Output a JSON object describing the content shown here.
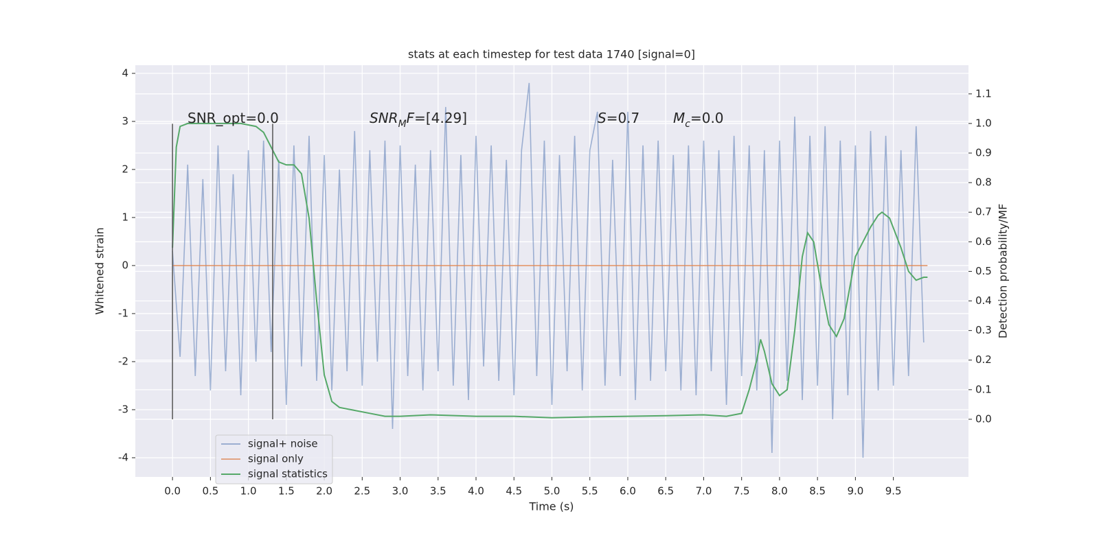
{
  "chart_data": {
    "type": "line",
    "title": "stats at each timestep for test data 1740 [signal=0]",
    "xlabel": "Time (s)",
    "ylabel": "Whitened strain",
    "y2label": "Detection probability/MF",
    "xlim": [
      -0.49,
      10.49
    ],
    "ylim": [
      -4.4,
      4.17
    ],
    "y2lim": [
      -0.195,
      1.197
    ],
    "xticks": [
      {
        "value": 0,
        "label": "0.0"
      },
      0.5,
      {
        "value": 1,
        "label": "1.0"
      },
      1.5,
      {
        "value": 2,
        "label": "2.0"
      },
      2.5,
      {
        "value": 3,
        "label": "3.0"
      },
      3.5,
      {
        "value": 4,
        "label": "4.0"
      },
      4.5,
      {
        "value": 5,
        "label": "5.0"
      },
      5.5,
      {
        "value": 6,
        "label": "6.0"
      },
      6.5,
      {
        "value": 7,
        "label": "7.0"
      },
      7.5,
      {
        "value": 8,
        "label": "8.0"
      },
      8.5,
      {
        "value": 9,
        "label": "9.0"
      },
      9.5
    ],
    "yticks": [
      -4,
      -3,
      -2,
      -1,
      0,
      1,
      2,
      3,
      4
    ],
    "y2ticks": [
      {
        "value": 0,
        "label": "0.0"
      },
      0.1,
      0.2,
      0.3,
      0.4,
      0.5,
      0.6,
      0.7,
      0.8,
      0.9,
      {
        "value": 1,
        "label": "1.0"
      },
      1.1
    ],
    "grid": true,
    "vlines": {
      "x": [
        0,
        1.32
      ],
      "ymin": -3.2,
      "ymax": 2.95,
      "color": "#555555"
    },
    "annotations": [
      [
        {
          "text": "SNR_opt=0.0"
        }
      ],
      [
        {
          "text": "SNR",
          "style": "italic"
        },
        {
          "text": "M",
          "style": "italic",
          "baseline": "sub"
        },
        {
          "text": "F",
          "style": "italic"
        },
        {
          "text": "=[4.29]"
        }
      ],
      [
        {
          "text": "S",
          "style": "italic"
        },
        {
          "text": "=0.7"
        }
      ],
      [
        {
          "text": "M",
          "style": "italic"
        },
        {
          "text": "c",
          "style": "italic",
          "baseline": "sub"
        },
        {
          "text": "=0.0"
        }
      ]
    ],
    "legend": "lower left",
    "series": [
      {
        "name": "signal+ noise",
        "color": "#4c72b0",
        "opacity": 0.5,
        "x": [
          0,
          0.1,
          0.2,
          0.3,
          0.4,
          0.5,
          0.6,
          0.7,
          0.8,
          0.9,
          1,
          1.1,
          1.2,
          1.3,
          1.4,
          1.5,
          1.6,
          1.7,
          1.8,
          1.9,
          2,
          2.1,
          2.2,
          2.3,
          2.4,
          2.5,
          2.6,
          2.7,
          2.8,
          2.9,
          3,
          3.1,
          3.2,
          3.3,
          3.4,
          3.5,
          3.6,
          3.7,
          3.8,
          3.9,
          4,
          4.1,
          4.2,
          4.3,
          4.4,
          4.5,
          4.6,
          4.7,
          4.8,
          4.9,
          5,
          5.1,
          5.2,
          5.3,
          5.4,
          5.5,
          5.6,
          5.7,
          5.8,
          5.9,
          6,
          6.1,
          6.2,
          6.3,
          6.4,
          6.5,
          6.6,
          6.7,
          6.8,
          6.9,
          7,
          7.1,
          7.2,
          7.3,
          7.4,
          7.5,
          7.6,
          7.7,
          7.8,
          7.9,
          8,
          8.1,
          8.2,
          8.3,
          8.4,
          8.5,
          8.6,
          8.7,
          8.8,
          8.9,
          9,
          9.1,
          9.2,
          9.3,
          9.4,
          9.5,
          9.6,
          9.7,
          9.8,
          9.9
        ],
        "values": [
          0.3,
          -1.9,
          2.1,
          -2.3,
          1.8,
          -2.6,
          2.5,
          -2.2,
          1.9,
          -2.7,
          2.4,
          -2.0,
          2.6,
          -1.8,
          2.2,
          -2.9,
          2.5,
          -2.1,
          2.7,
          -2.4,
          2.3,
          -2.6,
          2.0,
          -2.2,
          2.8,
          -2.5,
          2.4,
          -2.0,
          2.6,
          -3.4,
          2.5,
          -2.3,
          2.1,
          -2.6,
          2.4,
          -2.2,
          3.3,
          -2.5,
          2.3,
          -2.8,
          2.7,
          -2.1,
          2.5,
          -2.4,
          2.2,
          -2.7,
          2.4,
          3.8,
          -2.3,
          2.6,
          -2.9,
          2.3,
          -2.2,
          2.7,
          -2.6,
          2.4,
          3.2,
          -2.5,
          2.2,
          -2.3,
          3.2,
          -2.8,
          2.5,
          -2.4,
          2.6,
          -2.2,
          2.3,
          -2.6,
          2.5,
          -2.7,
          2.6,
          -2.2,
          2.4,
          -2.9,
          2.7,
          -2.3,
          2.5,
          -2.6,
          2.4,
          -3.9,
          2.6,
          -2.4,
          3.1,
          -2.8,
          2.7,
          -2.5,
          2.9,
          -3.2,
          2.6,
          -2.7,
          2.5,
          -4.0,
          2.8,
          -2.6,
          2.7,
          -2.5,
          2.4,
          -2.3,
          2.9,
          -1.6
        ]
      },
      {
        "name": "signal only",
        "color": "#dd8452",
        "opacity": 0.7,
        "x": [
          0,
          9.95
        ],
        "values": [
          0,
          0
        ]
      },
      {
        "name": "signal statistics",
        "color": "#55a868",
        "opacity": 1,
        "axis": "y2",
        "x": [
          0,
          0.05,
          0.1,
          0.2,
          0.5,
          0.9,
          1.1,
          1.2,
          1.3,
          1.4,
          1.5,
          1.6,
          1.7,
          1.8,
          1.9,
          2.0,
          2.1,
          2.2,
          2.4,
          2.6,
          2.8,
          3.0,
          3.4,
          4.0,
          4.5,
          5.0,
          5.5,
          6.0,
          6.5,
          7.0,
          7.3,
          7.5,
          7.6,
          7.7,
          7.75,
          7.8,
          7.9,
          8.0,
          8.1,
          8.2,
          8.3,
          8.37,
          8.45,
          8.55,
          8.65,
          8.75,
          8.85,
          9.0,
          9.1,
          9.2,
          9.3,
          9.35,
          9.45,
          9.6,
          9.7,
          9.8,
          9.9,
          9.95
        ],
        "values": [
          0.58,
          0.92,
          0.99,
          1.0,
          1.0,
          1.0,
          0.99,
          0.97,
          0.92,
          0.87,
          0.86,
          0.86,
          0.83,
          0.68,
          0.4,
          0.15,
          0.06,
          0.04,
          0.03,
          0.02,
          0.01,
          0.01,
          0.015,
          0.01,
          0.01,
          0.005,
          0.008,
          0.01,
          0.012,
          0.015,
          0.01,
          0.02,
          0.1,
          0.2,
          0.27,
          0.23,
          0.12,
          0.08,
          0.1,
          0.3,
          0.55,
          0.63,
          0.6,
          0.45,
          0.32,
          0.28,
          0.34,
          0.55,
          0.6,
          0.65,
          0.69,
          0.7,
          0.68,
          0.58,
          0.5,
          0.47,
          0.48,
          0.48
        ]
      }
    ]
  }
}
